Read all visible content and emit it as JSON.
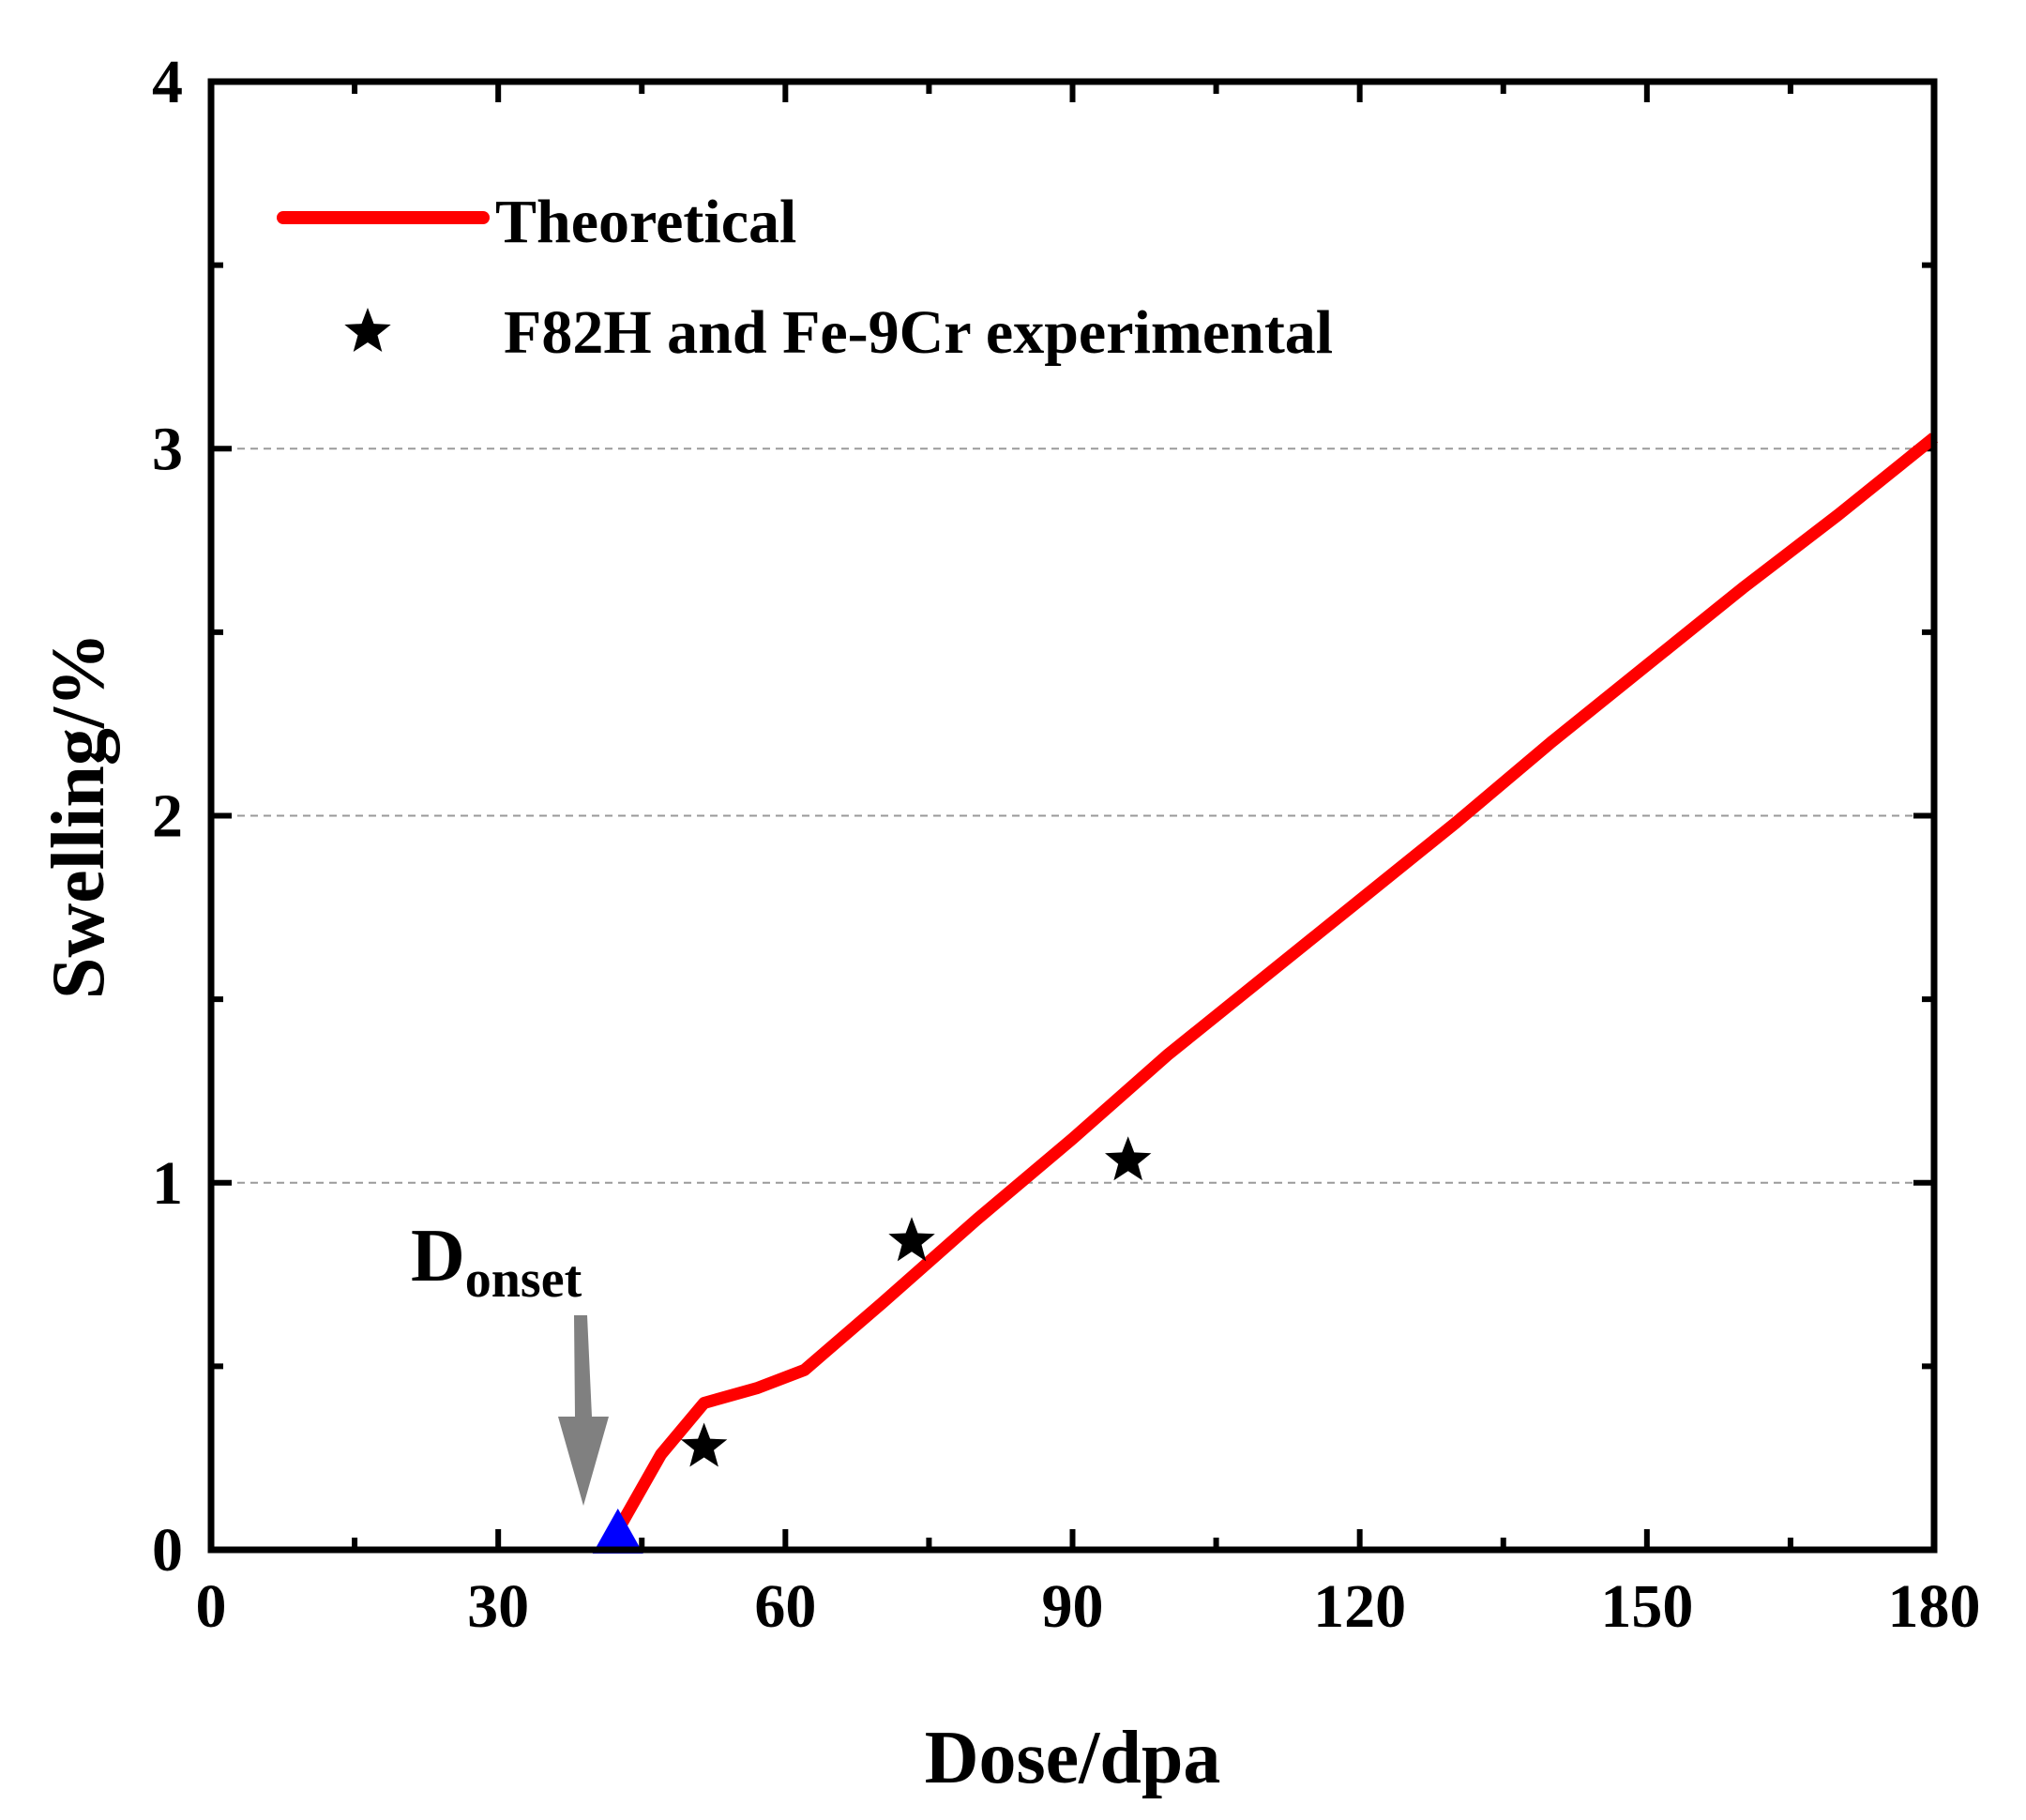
{
  "chart_data": {
    "type": "line",
    "title": "",
    "xlabel": "Dose/dpa",
    "ylabel": "Swelling/%",
    "xlim": [
      0,
      180
    ],
    "ylim": [
      0,
      4
    ],
    "xticks": [
      0,
      30,
      60,
      90,
      120,
      150,
      180
    ],
    "yticks": [
      0,
      1,
      2,
      3,
      4
    ],
    "gridlines_y": [
      1,
      2,
      3
    ],
    "series": [
      {
        "name": "Theoretical",
        "kind": "line",
        "color": "#ff0000",
        "x": [
          42,
          47,
          51.5,
          57,
          62,
          70,
          80,
          90,
          100,
          110,
          120,
          130,
          140,
          150,
          160,
          170,
          180
        ],
        "y": [
          0.03,
          0.26,
          0.4,
          0.44,
          0.49,
          0.67,
          0.9,
          1.12,
          1.35,
          1.56,
          1.77,
          1.98,
          2.2,
          2.41,
          2.62,
          2.82,
          3.03
        ]
      },
      {
        "name": "F82H and Fe-9Cr experimental",
        "kind": "scatter",
        "marker": "star",
        "color": "#000000",
        "x": [
          51.5,
          73.2,
          95.8
        ],
        "y": [
          0.28,
          0.84,
          1.06
        ]
      }
    ],
    "onset_marker": {
      "x": 42.5,
      "y": 0.0,
      "color": "#0000ff",
      "marker": "triangle"
    },
    "annotation": {
      "text_main": "D",
      "text_sub": "onset",
      "arrow_color": "#808080"
    },
    "legend": {
      "placement": "top-left",
      "entries": [
        "Theoretical",
        "F82H and Fe-9Cr experimental"
      ]
    }
  }
}
